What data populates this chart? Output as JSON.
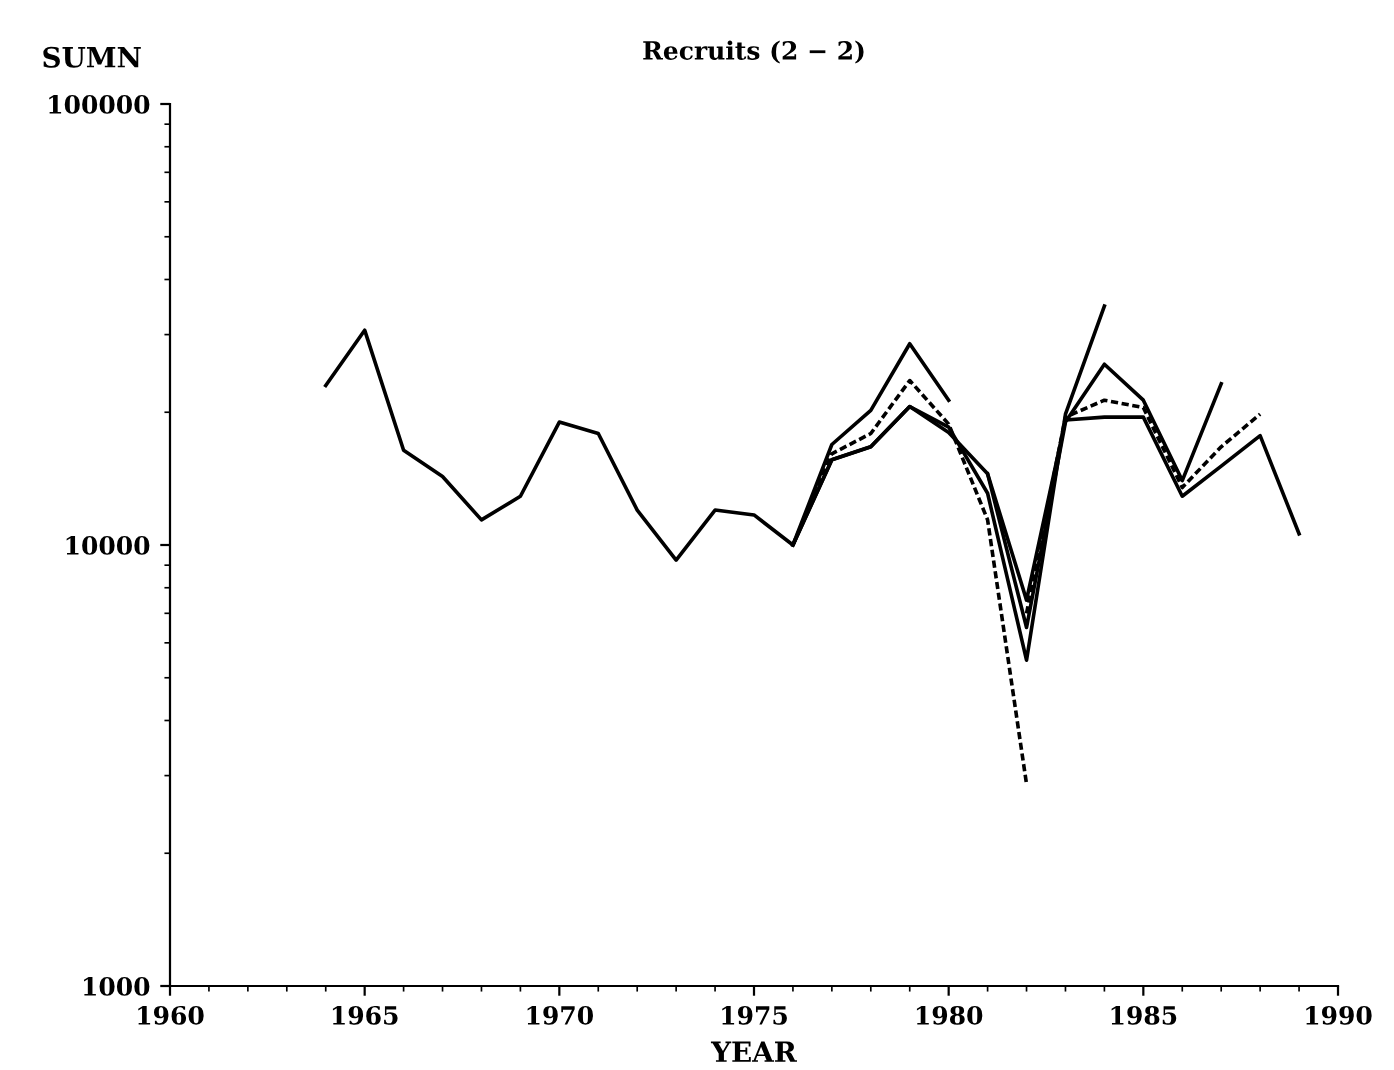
{
  "chart_data": {
    "type": "line",
    "title": "Recruits (2 − 2)",
    "xlabel": "YEAR",
    "ylabel": "SUMN",
    "log": "y",
    "grid": false,
    "legend": false,
    "marker": "none",
    "line_style": "solid",
    "xlim": [
      1960,
      1990
    ],
    "xticks": [
      1960,
      1965,
      1970,
      1975,
      1980,
      1985,
      1990
    ],
    "ylim": [
      1000,
      100000
    ],
    "yticks": [
      1000,
      10000,
      100000
    ],
    "series": [
      {
        "color": "#000000",
        "x": [
          1964,
          1965,
          1966,
          1967,
          1968,
          1969,
          1970,
          1971,
          1972,
          1973,
          1974,
          1975,
          1976,
          1977,
          1978,
          1979,
          1980,
          1981,
          1982,
          1983,
          1984,
          1985,
          1986,
          1987,
          1988,
          1989
        ],
        "values": [
          23000,
          30700,
          16400,
          14300,
          11400,
          12900,
          19000,
          17900,
          12000,
          9240,
          12000,
          11700,
          10000,
          15600,
          16700,
          20600,
          18000,
          14500,
          7500,
          19200,
          19500,
          19500,
          12900,
          15100,
          17700,
          10600
        ]
      },
      {
        "color": "#000000",
        "x": [
          1976,
          1977,
          1978,
          1979,
          1980
        ],
        "values": [
          10000,
          16900,
          20200,
          28600,
          21300
        ]
      },
      {
        "color": "#000000",
        "line_style": "dashed",
        "x": [
          1976,
          1977,
          1978,
          1979,
          1980,
          1981,
          1982
        ],
        "values": [
          10000,
          16100,
          17900,
          23600,
          18800,
          11400,
          2870
        ]
      },
      {
        "color": "#000000",
        "x": [
          1976,
          1977,
          1978,
          1979,
          1980,
          1981,
          1982,
          1983,
          1984
        ],
        "values": [
          10000,
          15600,
          16700,
          20600,
          18500,
          13100,
          5480,
          19800,
          34800
        ]
      },
      {
        "color": "#000000",
        "x": [
          1981,
          1982,
          1983,
          1984,
          1985,
          1986,
          1987
        ],
        "values": [
          14500,
          6500,
          19000,
          25700,
          21300,
          14000,
          23200
        ]
      },
      {
        "color": "#000000",
        "line_style": "dashed",
        "x": [
          1982,
          1983,
          1984,
          1985,
          1986,
          1987,
          1988
        ],
        "values": [
          7000,
          19500,
          21300,
          20500,
          13500,
          16700,
          19800
        ]
      }
    ]
  }
}
